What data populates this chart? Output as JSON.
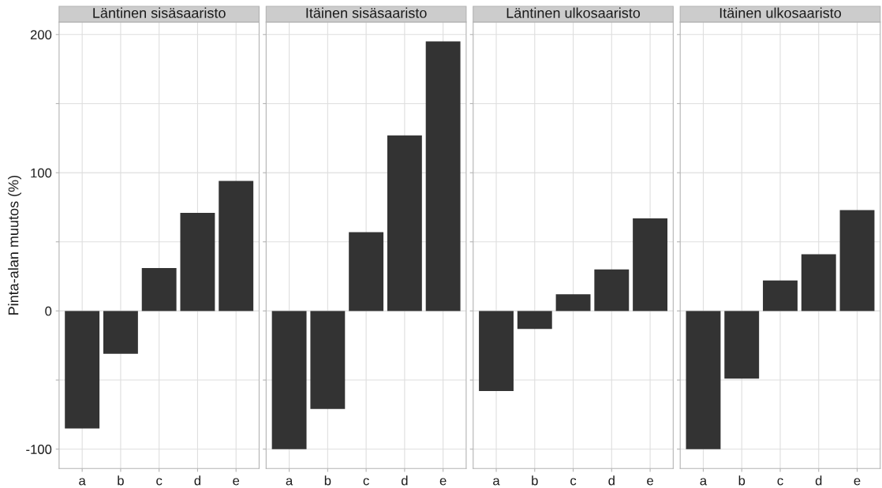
{
  "chart_data": [
    {
      "type": "bar",
      "title": "Läntinen sisäsaaristo",
      "ylabel": "Pinta-alan muutos (%)",
      "categories": [
        "a",
        "b",
        "c",
        "d",
        "e"
      ],
      "values": [
        -85,
        -31,
        31,
        71,
        94
      ],
      "color": "#333333",
      "ylim": [
        -114,
        209
      ],
      "yticks": [
        -100,
        {
          "value": -50,
          "label": null
        },
        0,
        {
          "value": 50,
          "label": null
        },
        100,
        {
          "value": 150,
          "label": null
        },
        200
      ],
      "grid": true
    },
    {
      "type": "bar",
      "title": "Itäinen sisäsaaristo",
      "categories": [
        "a",
        "b",
        "c",
        "d",
        "e"
      ],
      "values": [
        -100,
        -71,
        57,
        127,
        195
      ],
      "color": "#333333",
      "ylim": [
        -114,
        209
      ],
      "yticks": [
        -100,
        {
          "value": -50,
          "label": null
        },
        0,
        {
          "value": 50,
          "label": null
        },
        100,
        {
          "value": 150,
          "label": null
        },
        200
      ],
      "grid": true,
      "tick_labels": "x"
    },
    {
      "type": "bar",
      "title": "Läntinen ulkosaaristo",
      "categories": [
        "a",
        "b",
        "c",
        "d",
        "e"
      ],
      "values": [
        -58,
        -13,
        12,
        30,
        67
      ],
      "color": "#333333",
      "ylim": [
        -114,
        209
      ],
      "yticks": [
        -100,
        {
          "value": -50,
          "label": null
        },
        0,
        {
          "value": 50,
          "label": null
        },
        100,
        {
          "value": 150,
          "label": null
        },
        200
      ],
      "grid": true,
      "tick_labels": "x"
    },
    {
      "type": "bar",
      "title": "Itäinen ulkosaaristo",
      "categories": [
        "a",
        "b",
        "c",
        "d",
        "e"
      ],
      "values": [
        -100,
        -49,
        22,
        41,
        73
      ],
      "color": "#333333",
      "ylim": [
        -114,
        209
      ],
      "yticks": [
        -100,
        {
          "value": -50,
          "label": null
        },
        0,
        {
          "value": 50,
          "label": null
        },
        100,
        {
          "value": 150,
          "label": null
        },
        200
      ],
      "grid": true,
      "tick_labels": "x"
    }
  ]
}
